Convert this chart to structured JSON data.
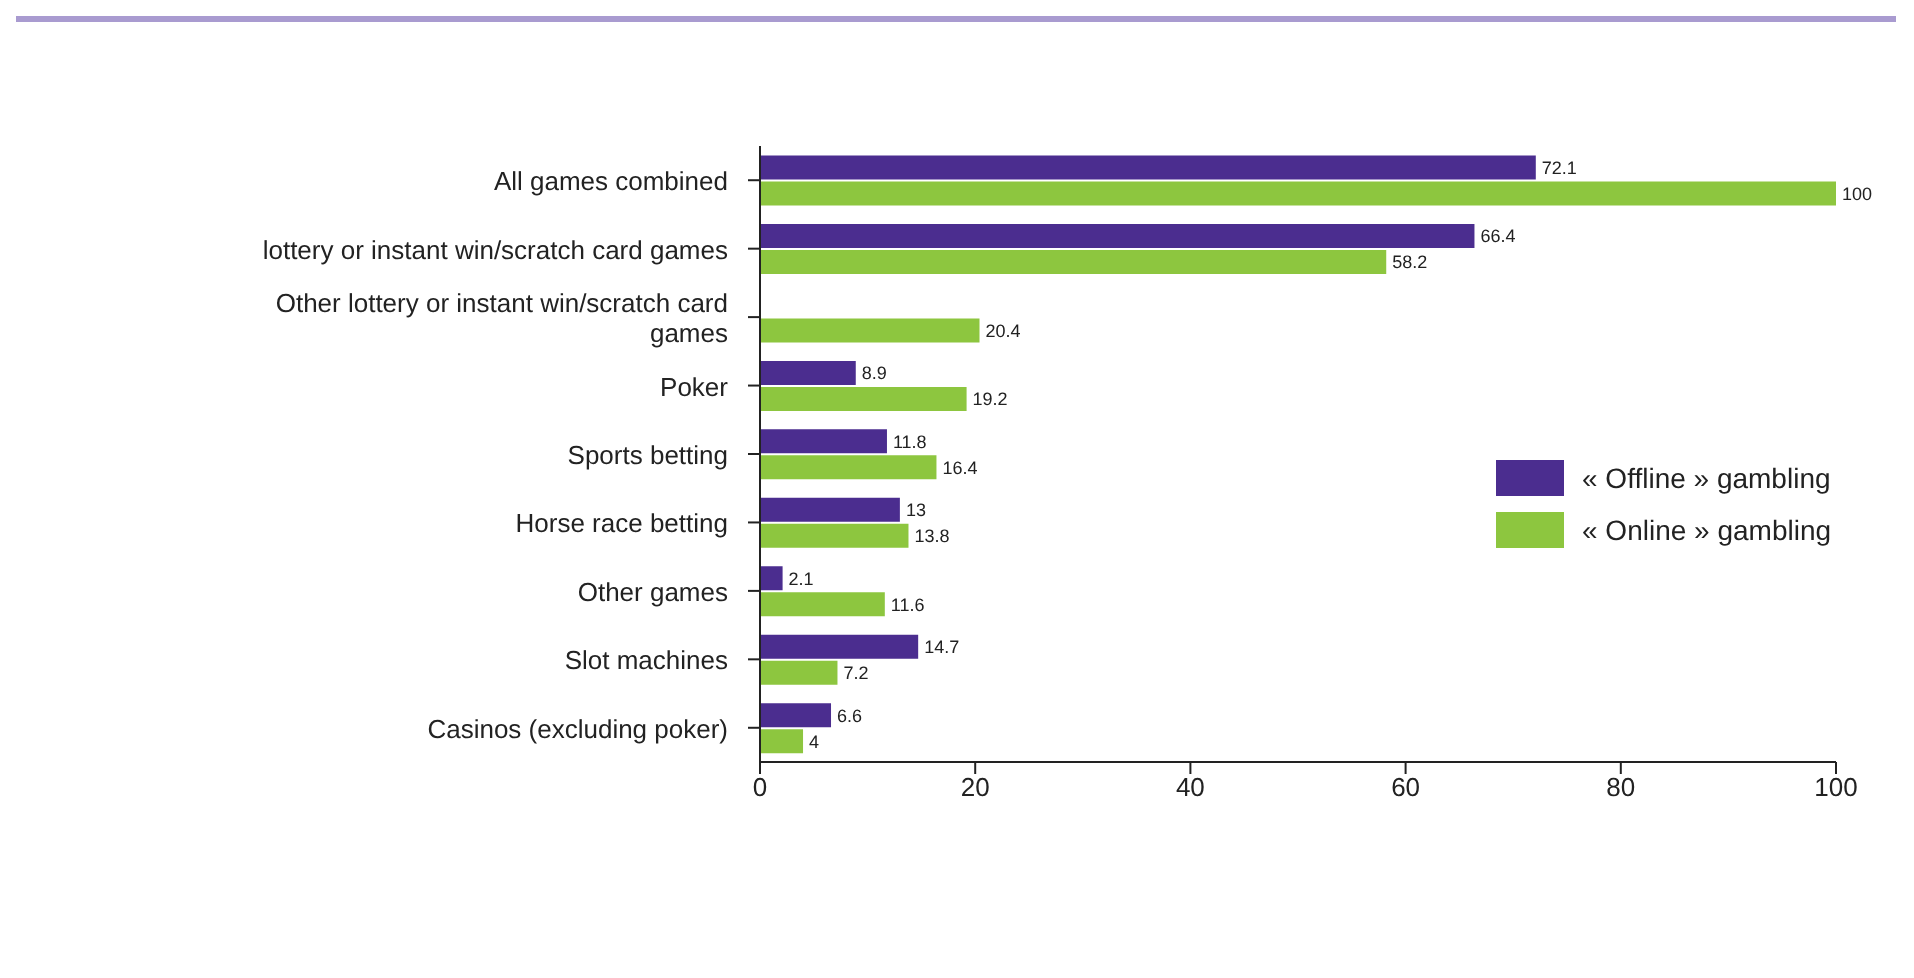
{
  "chart_data": {
    "type": "bar",
    "orientation": "horizontal",
    "categories": [
      "All games combined",
      "lottery or instant win/scratch card games",
      "Other lottery or instant win/scratch card games",
      "Poker",
      "Sports betting",
      "Horse race betting",
      "Other games",
      "Slot machines",
      "Casinos (excluding poker)"
    ],
    "series": [
      {
        "name": "« Offline » gambling",
        "color": "#4b2d8f",
        "values": [
          72.1,
          66.4,
          null,
          8.9,
          11.8,
          13,
          2.1,
          14.7,
          6.6
        ]
      },
      {
        "name": "« Online » gambling",
        "color": "#8dc63f",
        "values": [
          100,
          58.2,
          20.4,
          19.2,
          16.4,
          13.8,
          11.6,
          7.2,
          4
        ]
      }
    ],
    "xlim": [
      0,
      100
    ],
    "xticks": [
      0,
      20,
      40,
      60,
      80,
      100
    ],
    "data_labels": true,
    "legend": "right"
  }
}
